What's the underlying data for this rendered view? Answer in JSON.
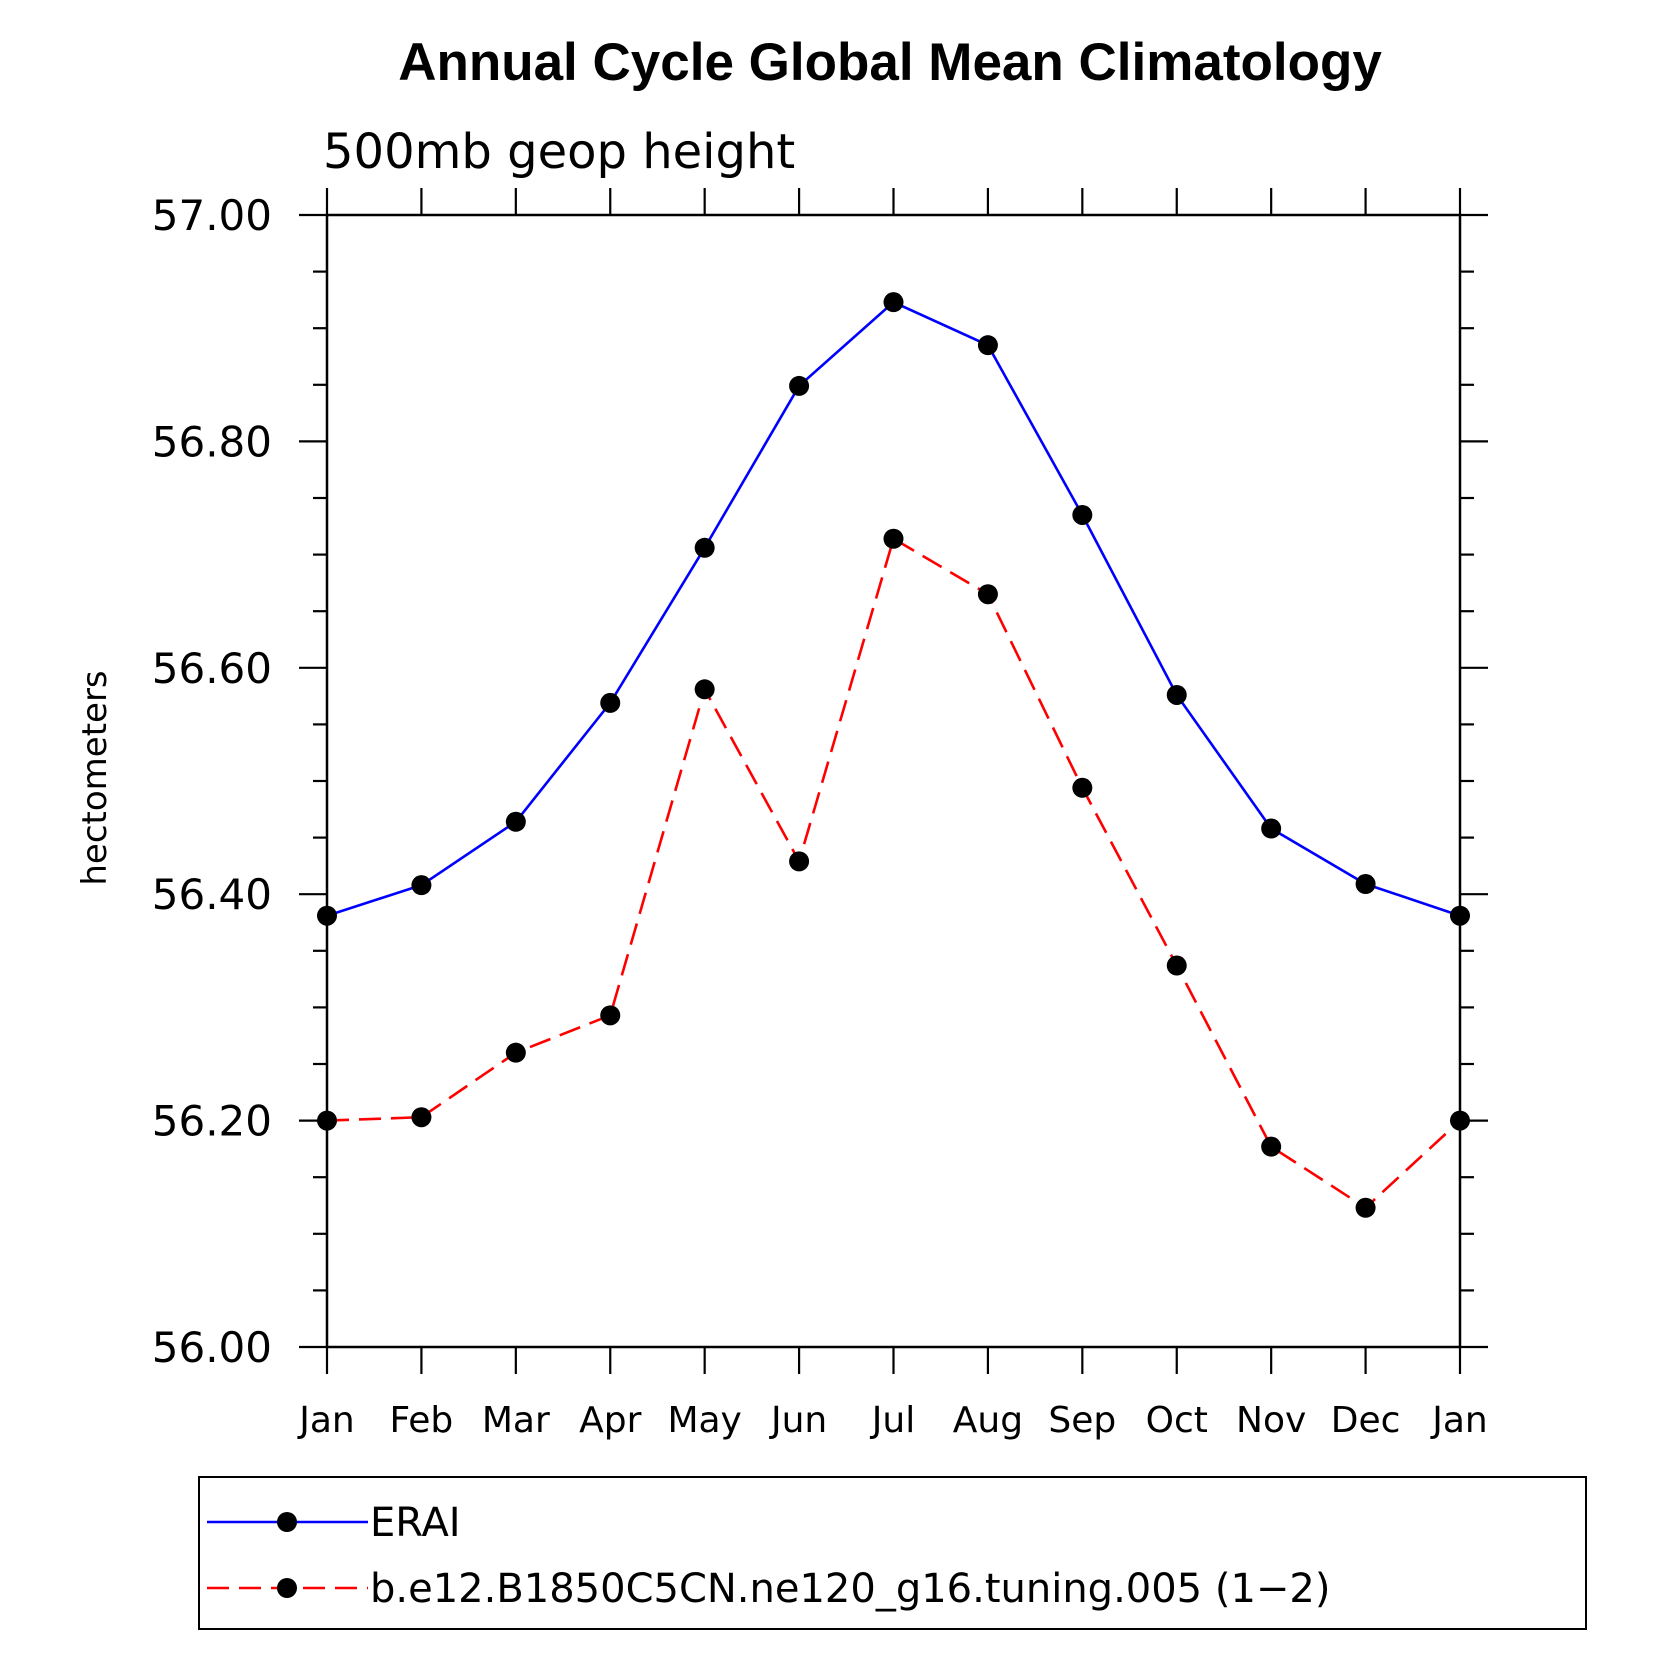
{
  "chart_data": {
    "type": "line",
    "title": "Annual Cycle Global Mean Climatology",
    "subtitle": "500mb geop height",
    "xlabel": "",
    "ylabel": "hectometers",
    "categories": [
      "Jan",
      "Feb",
      "Mar",
      "Apr",
      "May",
      "Jun",
      "Jul",
      "Aug",
      "Sep",
      "Oct",
      "Nov",
      "Dec",
      "Jan"
    ],
    "ylim": [
      56.0,
      57.0
    ],
    "yticks": [
      "56.00",
      "56.20",
      "56.40",
      "56.60",
      "56.80",
      "57.00"
    ],
    "series": [
      {
        "name": "ERAI",
        "color": "#0000ff",
        "dash": "solid",
        "marker": "filled-circle",
        "values": [
          56.381,
          56.408,
          56.464,
          56.569,
          56.706,
          56.849,
          56.923,
          56.885,
          56.735,
          56.576,
          56.458,
          56.409,
          56.381
        ]
      },
      {
        "name": "b.e12.B1850C5CN.ne120_g16.tuning.005 (1−2)",
        "color": "#ff0000",
        "dash": "dashed",
        "marker": "filled-circle",
        "values": [
          56.2,
          56.203,
          56.26,
          56.293,
          56.581,
          56.429,
          56.714,
          56.665,
          56.494,
          56.337,
          56.177,
          56.123,
          56.2
        ]
      }
    ],
    "grid": false,
    "legend_position": "bottom"
  }
}
